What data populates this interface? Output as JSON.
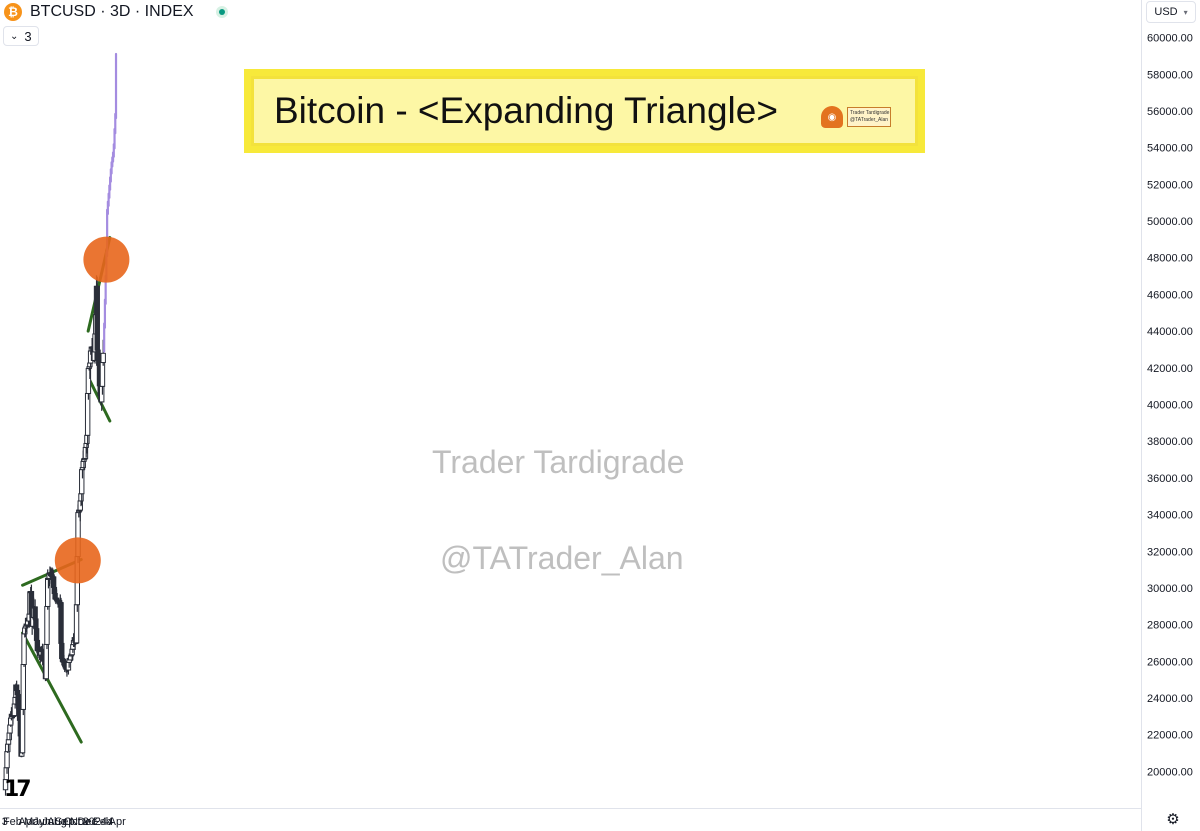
{
  "header": {
    "symbol_line": "BTCUSD · 3D · INDEX",
    "coin_icon": "bitcoin-icon",
    "interval_label": "3",
    "currency_label": "USD"
  },
  "banner": {
    "title": "Bitcoin - <Expanding Triangle>",
    "badge_line1": "Trader Tardigrade",
    "badge_line2": "@TATrader_Alan"
  },
  "watermarks": [
    "Trader Tardigrade",
    "@TATrader_Alan"
  ],
  "colors": {
    "candle": "#2a2e39",
    "trendline": "#2d6a1f",
    "breakout_marker": "#e8661c",
    "projection": "#a48ce0",
    "banner_fill": "#fdf7a5",
    "banner_border": "#f7e93a"
  },
  "icons": {
    "settings": "gear-icon",
    "logo": "tradingview-logo"
  },
  "chart_data": {
    "type": "candlestick",
    "title": "Bitcoin - <Expanding Triangle>",
    "price_axis": {
      "range": [
        19200,
        61000
      ],
      "ticks": [
        20000,
        22000,
        24000,
        26000,
        28000,
        30000,
        32000,
        34000,
        36000,
        38000,
        40000,
        42000,
        44000,
        46000,
        48000,
        50000,
        52000,
        54000,
        56000,
        58000,
        60000
      ],
      "tick_labels": [
        "20000.00",
        "22000.00",
        "24000.00",
        "26000.00",
        "28000.00",
        "30000.00",
        "32000.00",
        "34000.00",
        "36000.00",
        "38000.00",
        "40000.00",
        "42000.00",
        "44000.00",
        "46000.00",
        "48000.00",
        "50000.00",
        "52000.00",
        "54000.00",
        "56000.00",
        "58000.00",
        "60000.00"
      ]
    },
    "time_axis": {
      "labels": [
        {
          "text": "3",
          "date": "2023-01-01"
        },
        {
          "text": "Feb",
          "date": "2023-02-01"
        },
        {
          "text": "Apr",
          "date": "2023-04-01"
        },
        {
          "text": "May",
          "date": "2023-05-01"
        },
        {
          "text": "Jun",
          "date": "2023-06-01"
        },
        {
          "text": "Jul",
          "date": "2023-07-01"
        },
        {
          "text": "Aug",
          "date": "2023-08-01"
        },
        {
          "text": "Sep",
          "date": "2023-09-01"
        },
        {
          "text": "Oct",
          "date": "2023-10-01"
        },
        {
          "text": "Nov",
          "date": "2023-11-01"
        },
        {
          "text": "Dec",
          "date": "2023-12-01"
        },
        {
          "text": "2024",
          "date": "2024-01-01"
        },
        {
          "text": "Feb",
          "date": "2024-02-01"
        },
        {
          "text": "4",
          "date": "2024-03-04"
        },
        {
          "text": "Apr",
          "date": "2024-04-01"
        }
      ]
    },
    "anchors": [
      {
        "date": "2023-01-01",
        "price": 19000
      },
      {
        "date": "2023-01-10",
        "price": 21000
      },
      {
        "date": "2023-01-25",
        "price": 23000
      },
      {
        "date": "2023-02-06",
        "price": 22900
      },
      {
        "date": "2023-02-15",
        "price": 24800
      },
      {
        "date": "2023-02-28",
        "price": 23400
      },
      {
        "date": "2023-03-10",
        "price": 20200
      },
      {
        "date": "2023-03-19",
        "price": 27400
      },
      {
        "date": "2023-03-28",
        "price": 28000
      },
      {
        "date": "2023-04-09",
        "price": 28300
      },
      {
        "date": "2023-04-14",
        "price": 30400
      },
      {
        "date": "2023-04-22",
        "price": 27800
      },
      {
        "date": "2023-04-30",
        "price": 29200
      },
      {
        "date": "2023-05-12",
        "price": 26800
      },
      {
        "date": "2023-05-24",
        "price": 26300
      },
      {
        "date": "2023-06-05",
        "price": 26700
      },
      {
        "date": "2023-06-15",
        "price": 25200
      },
      {
        "date": "2023-06-21",
        "price": 28900
      },
      {
        "date": "2023-06-24",
        "price": 30600
      },
      {
        "date": "2023-07-13",
        "price": 30700
      },
      {
        "date": "2023-07-24",
        "price": 29300
      },
      {
        "date": "2023-08-15",
        "price": 29100
      },
      {
        "date": "2023-08-18",
        "price": 26200
      },
      {
        "date": "2023-09-11",
        "price": 25600
      },
      {
        "date": "2023-09-26",
        "price": 26300
      },
      {
        "date": "2023-10-10",
        "price": 27400
      },
      {
        "date": "2023-10-16",
        "price": 27000
      },
      {
        "date": "2023-10-20",
        "price": 29800
      },
      {
        "date": "2023-10-24",
        "price": 33900
      },
      {
        "date": "2023-11-05",
        "price": 34800
      },
      {
        "date": "2023-11-10",
        "price": 36700
      },
      {
        "date": "2023-11-22",
        "price": 37300
      },
      {
        "date": "2023-12-01",
        "price": 38500
      },
      {
        "date": "2023-12-04",
        "price": 41600
      },
      {
        "date": "2023-12-11",
        "price": 42100
      },
      {
        "date": "2023-12-20",
        "price": 43300
      },
      {
        "date": "2023-12-29",
        "price": 42200
      },
      {
        "date": "2024-01-08",
        "price": 46200
      },
      {
        "date": "2024-01-11",
        "price": 43200
      },
      {
        "date": "2024-01-19",
        "price": 41400
      },
      {
        "date": "2024-01-26",
        "price": 40100
      },
      {
        "date": "2024-02-02",
        "price": 42800
      },
      {
        "date": "2024-02-05",
        "price": 43000
      }
    ],
    "projection_anchors": [
      {
        "date": "2024-02-05",
        "price": 43000
      },
      {
        "date": "2024-02-17",
        "price": 48200
      },
      {
        "date": "2024-02-20",
        "price": 50500
      },
      {
        "date": "2024-03-08",
        "price": 53000
      },
      {
        "date": "2024-03-17",
        "price": 53800
      },
      {
        "date": "2024-03-25",
        "price": 56000
      },
      {
        "date": "2024-03-28",
        "price": 60500
      }
    ],
    "trendlines": [
      {
        "name": "upper-2023",
        "from": {
          "date": "2023-03-14",
          "price": 30150
        },
        "to": {
          "date": "2023-11-07",
          "price": 31550
        }
      },
      {
        "name": "lower-2023",
        "from": {
          "date": "2023-03-14",
          "price": 27550
        },
        "to": {
          "date": "2023-11-07",
          "price": 21600
        }
      },
      {
        "name": "upper-2024",
        "from": {
          "date": "2023-12-05",
          "price": 44000
        },
        "to": {
          "date": "2024-03-02",
          "price": 49100
        }
      },
      {
        "name": "lower-2024",
        "from": {
          "date": "2023-12-05",
          "price": 41500
        },
        "to": {
          "date": "2024-03-02",
          "price": 39100
        }
      }
    ],
    "markers": [
      {
        "name": "breakout-2023",
        "date": "2023-10-24",
        "price": 31500
      },
      {
        "name": "breakout-2024",
        "date": "2024-02-17",
        "price": 47900
      }
    ],
    "grid": false,
    "legend": "none"
  }
}
